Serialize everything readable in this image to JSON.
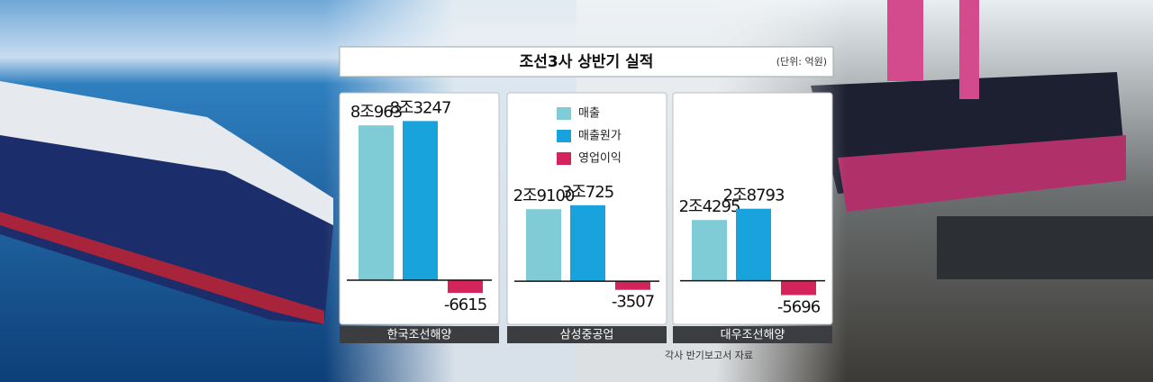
{
  "title": "조선3사 상반기 실적",
  "unit": "(단위: 억원)",
  "source": "각사 반기보고서 자료",
  "series": [
    {
      "name": "매출",
      "color": "#7fcbd6"
    },
    {
      "name": "매출원가",
      "color": "#19a3dc"
    },
    {
      "name": "영업이익",
      "color": "#d4245c"
    }
  ],
  "chart_data": [
    {
      "type": "bar",
      "label": "한국조선해양",
      "values": [
        80963,
        83247,
        -6615
      ],
      "value_labels": [
        "8조963",
        "8조3247",
        "-6615"
      ],
      "ylim": [
        -16000,
        90000
      ]
    },
    {
      "type": "bar",
      "label": "삼성중공업",
      "values": [
        29100,
        30725,
        -3507
      ],
      "value_labels": [
        "2조9100",
        "3조725",
        "-3507"
      ],
      "ylim": [
        -12000,
        70000
      ]
    },
    {
      "type": "bar",
      "label": "대우조선해양",
      "values": [
        24295,
        28793,
        -5696
      ],
      "value_labels": [
        "2조4295",
        "2조8793",
        "-5696"
      ],
      "ylim": [
        -12000,
        69000
      ]
    }
  ]
}
